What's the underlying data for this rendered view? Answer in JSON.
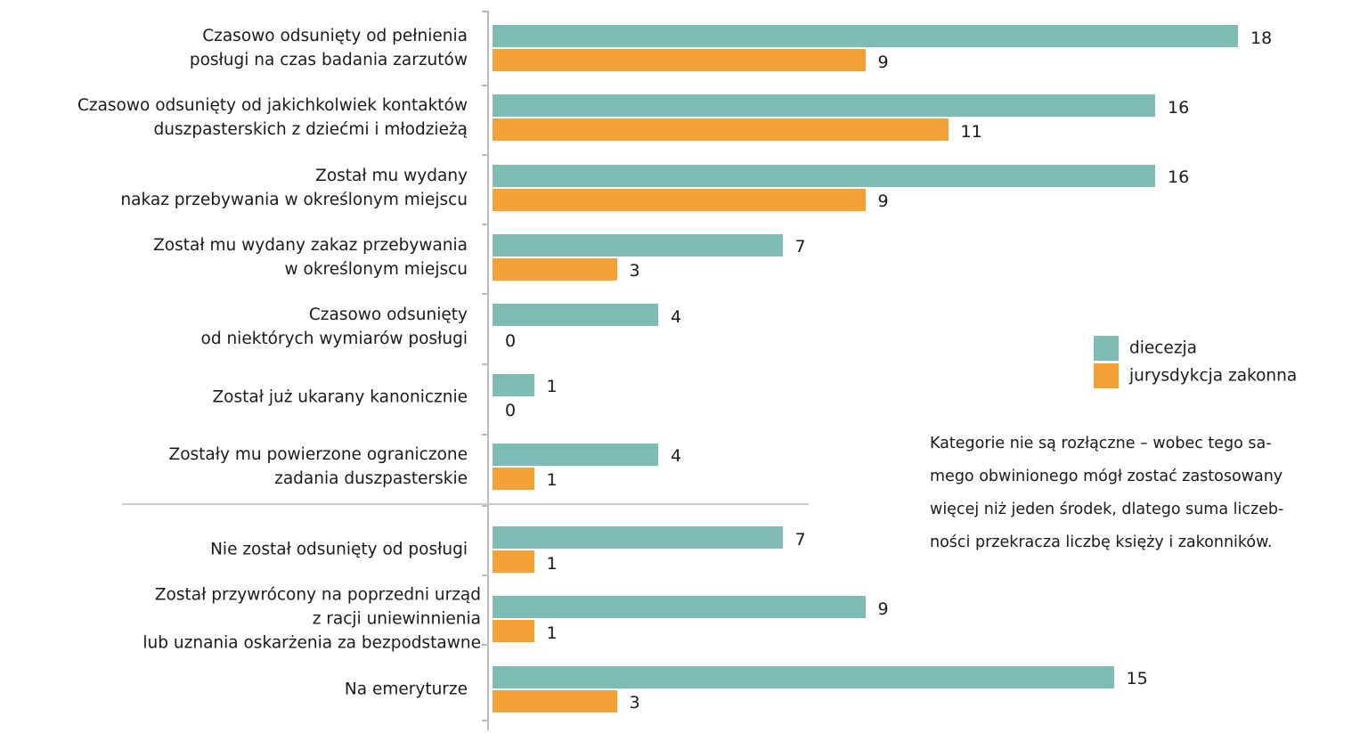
{
  "chart_data": {
    "type": "bar",
    "orientation": "horizontal",
    "categories": [
      "Czasowo odsunięty od pełnienia\nposługi na czas badania zarzutów",
      "Czasowo odsunięty od jakichkolwiek kontaktów\nduszpasterskich z dziećmi i młodzieżą",
      "Został mu wydany\nnakaz przebywania w określonym miejscu",
      "Został mu wydany zakaz przebywania\nw określonym miejscu",
      "Czasowo odsunięty\nod niektórych wymiarów posługi",
      "Został już ukarany kanonicznie",
      "Zostały mu powierzone ograniczone\nzadania duszpasterskie",
      "Nie został odsunięty od posługi",
      "Został przywrócony na poprzedni urząd\nz racji uniewinnienia\nlub uznania oskarżenia za bezpodstawne",
      "Na emeryturze"
    ],
    "series": [
      {
        "name": "diecezja",
        "color": "#7fbcb6",
        "values": [
          18,
          16,
          16,
          7,
          4,
          1,
          4,
          7,
          9,
          15
        ]
      },
      {
        "name": "jurysdykcja zakonna",
        "color": "#f4a236",
        "values": [
          9,
          11,
          9,
          3,
          0,
          0,
          1,
          1,
          1,
          3
        ]
      }
    ],
    "legend": "right",
    "annotation": "Kategorie nie są rozłączne – wobec tego sa-\nmego obwinionego mógł zostać zastosowany\nwięcej niż jeden środek, dlatego suma liczeb-\nności przekracza liczbę księży i zakonników."
  }
}
